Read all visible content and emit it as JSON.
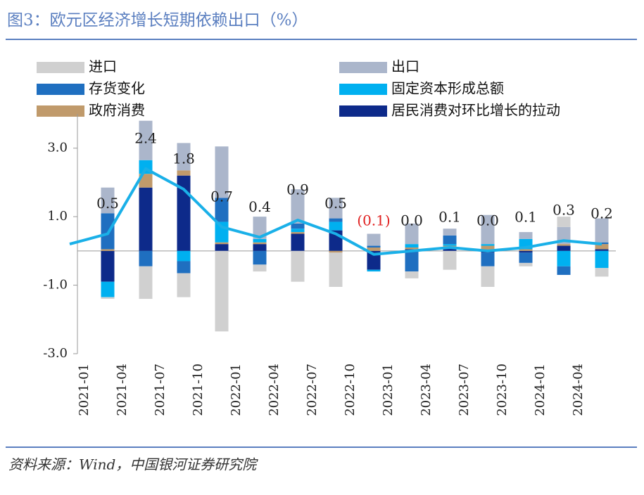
{
  "chart_data": {
    "type": "stacked-bar-line",
    "title": "图3：欧元区经济增长短期依赖出口（%）",
    "source": "资料来源：Wind，中国银河证券研究院",
    "categories": [
      null,
      "2021-01",
      "2021-04",
      "2021-07",
      "2021-10",
      "2022-01",
      "2022-04",
      "2022-07",
      "2022-10",
      "2023-01",
      "2023-04",
      "2023-07",
      "2023-10",
      "2024-01",
      "2024-04"
    ],
    "series": [
      {
        "name": "进口",
        "color": "#d0d0d0",
        "values": [
          null,
          -0.05,
          -0.95,
          -0.7,
          -2.35,
          -0.2,
          -0.9,
          -1.0,
          0,
          -0.2,
          -0.55,
          -0.6,
          -0.1,
          0.3,
          -0.25
        ]
      },
      {
        "name": "出口",
        "color": "#abb6cb",
        "values": [
          null,
          0.75,
          1.15,
          0.8,
          1.5,
          0.65,
          1.0,
          0.6,
          0.35,
          0.6,
          0.2,
          0.85,
          0.2,
          0.5,
          0.7
        ]
      },
      {
        "name": "存货变化",
        "color": "#1f6fc0",
        "values": [
          null,
          1.05,
          -0.45,
          -0.35,
          0.7,
          -0.4,
          0.15,
          0.1,
          0.05,
          -0.6,
          0.25,
          -0.4,
          -0.3,
          -0.25,
          0.05
        ]
      },
      {
        "name": "固定资本形成总额",
        "color": "#00b0f0",
        "values": [
          null,
          -0.45,
          0.4,
          -0.3,
          0.6,
          0.1,
          0.1,
          0.25,
          -0.05,
          0.1,
          0.05,
          0.05,
          0.3,
          -0.45,
          -0.5
        ]
      },
      {
        "name": "政府消费",
        "color": "#c09a6b",
        "values": [
          null,
          0.05,
          0.4,
          0.15,
          0.05,
          0.05,
          0.05,
          -0.05,
          0.1,
          0.05,
          0.05,
          0.15,
          0.05,
          0.05,
          0.15
        ]
      },
      {
        "name": "居民消费对环比增长的拉动",
        "color": "#0d2a8a",
        "values": [
          null,
          -0.9,
          1.85,
          2.2,
          0.2,
          0.2,
          0.5,
          0.6,
          -0.55,
          0.05,
          0.1,
          -0.05,
          -0.05,
          0.15,
          0.05
        ]
      }
    ],
    "line": {
      "color": "#1ab0e8",
      "values": [
        0.2,
        0.5,
        2.4,
        1.8,
        0.7,
        0.4,
        0.9,
        0.5,
        -0.1,
        0.0,
        0.1,
        0.0,
        0.1,
        0.3,
        0.2
      ],
      "value_labels": [
        null,
        "0.5",
        "2.4",
        "1.8",
        "0.7",
        "0.4",
        "0.9",
        "0.5",
        "(0.1)",
        "0.0",
        "0.1",
        "0.0",
        "0.1",
        "0.3",
        "0.2"
      ]
    },
    "ylim": [
      -3,
      4
    ],
    "yticks": [
      {
        "value": 3,
        "label": "3.0"
      },
      {
        "value": 1,
        "label": "1.0"
      },
      {
        "value": -1,
        "label": "-1.0"
      },
      {
        "value": -3,
        "label": "-3.0"
      }
    ]
  }
}
